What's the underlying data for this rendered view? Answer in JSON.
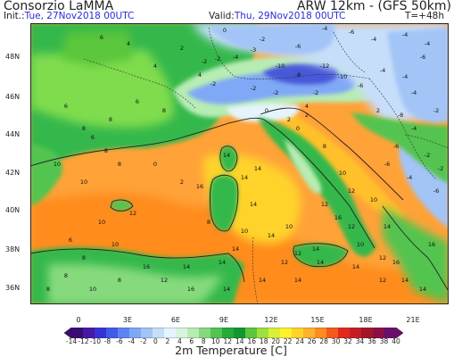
{
  "header": {
    "source": "Consorzio LaMMA",
    "model": "ARW 12km - (GFS 50km)",
    "init_label": "Init.:",
    "init_value": "Tue, 27Nov2018 00UTC",
    "valid_label": "Valid:",
    "valid_value": "Thu, 29Nov2018 00UTC",
    "step": "T=+48h"
  },
  "map": {
    "latitudes": [
      "48N",
      "46N",
      "44N",
      "42N",
      "40N",
      "38N",
      "36N"
    ],
    "longitudes": [
      "0",
      "3E",
      "6E",
      "9E",
      "12E",
      "15E",
      "18E",
      "21E"
    ],
    "colors": {
      "sea_warm": "#ffa238",
      "sea_orange": "#ff8c1e",
      "land_green": "#36b84c",
      "land_light": "#7fdc4e",
      "cold_blue": "#4658d8",
      "frame": "#222222",
      "highlight_text": "#2b2bd6"
    }
  },
  "colorbar": {
    "labels": [
      "-14",
      "-12",
      "-10",
      "-8",
      "-6",
      "-4",
      "-2",
      "0",
      "2",
      "4",
      "6",
      "8",
      "10",
      "12",
      "14",
      "16",
      "18",
      "20",
      "22",
      "24",
      "26",
      "28",
      "30",
      "32",
      "34",
      "36",
      "38",
      "40"
    ],
    "colors": [
      "#3a0c72",
      "#4518a8",
      "#3632d6",
      "#3f5be8",
      "#5b84f2",
      "#7fa8f6",
      "#a3c4f7",
      "#c7defa",
      "#e5f4fd",
      "#d8f4de",
      "#b7ecb3",
      "#86da7d",
      "#52c450",
      "#24ab38",
      "#11972f",
      "#5ac63b",
      "#9ee03f",
      "#dbef36",
      "#fff22a",
      "#ffd32a",
      "#ffb22c",
      "#ff8c1e",
      "#f45a1a",
      "#e02a1c",
      "#c41e22",
      "#a31628",
      "#8c0e45",
      "#6a0d6b"
    ]
  },
  "footer": {
    "title": "2m Temperature [C]"
  },
  "labels": [
    {
      "v": "0",
      "c": "k"
    },
    {
      "v": "-2",
      "c": "k"
    },
    {
      "v": "-4",
      "c": "k"
    },
    {
      "v": "-6",
      "c": "k"
    },
    {
      "v": "-4",
      "c": "k"
    },
    {
      "v": "-4",
      "c": "k"
    },
    {
      "v": "-4",
      "c": "k"
    },
    {
      "v": "-6",
      "c": "k"
    },
    {
      "v": "-3",
      "c": "k"
    },
    {
      "v": "-4",
      "c": "k"
    },
    {
      "v": "-2",
      "c": "k"
    },
    {
      "v": "-2",
      "c": "k"
    },
    {
      "v": "2",
      "c": "k"
    },
    {
      "v": "4",
      "c": "k"
    },
    {
      "v": "6",
      "c": "k"
    },
    {
      "v": "4",
      "c": "k"
    },
    {
      "v": "4",
      "c": "k"
    },
    {
      "v": "-2",
      "c": "k"
    },
    {
      "v": "-10",
      "c": "k"
    },
    {
      "v": "-8",
      "c": "k"
    },
    {
      "v": "-12",
      "c": "k"
    },
    {
      "v": "-10",
      "c": "k"
    },
    {
      "v": "-6",
      "c": "k"
    },
    {
      "v": "-4",
      "c": "k"
    },
    {
      "v": "-4",
      "c": "k"
    },
    {
      "v": "-2",
      "c": "k"
    },
    {
      "v": "-2",
      "c": "k"
    },
    {
      "v": "0",
      "c": "k"
    },
    {
      "v": "2",
      "c": "k"
    },
    {
      "v": "2",
      "c": "k"
    },
    {
      "v": "0",
      "c": "k"
    },
    {
      "v": "6",
      "c": "k"
    },
    {
      "v": "8",
      "c": "k"
    },
    {
      "v": "8",
      "c": "k"
    },
    {
      "v": "8",
      "c": "k"
    },
    {
      "v": "6",
      "c": "k"
    },
    {
      "v": "6",
      "c": "k"
    },
    {
      "v": "10",
      "c": "k"
    },
    {
      "v": "10",
      "c": "k"
    },
    {
      "v": "-6",
      "c": "k"
    },
    {
      "v": "-4",
      "c": "k"
    },
    {
      "v": "-2",
      "c": "k"
    },
    {
      "v": "2",
      "c": "k"
    },
    {
      "v": "8",
      "c": "k"
    },
    {
      "v": "10",
      "c": "k"
    },
    {
      "v": "12",
      "c": "k"
    },
    {
      "v": "14",
      "c": "k"
    },
    {
      "v": "14",
      "c": "k"
    },
    {
      "v": "14",
      "c": "k"
    },
    {
      "v": "16",
      "c": "k"
    },
    {
      "v": "14",
      "c": "k"
    },
    {
      "v": "12",
      "c": "k"
    },
    {
      "v": "12",
      "c": "k"
    },
    {
      "v": "10",
      "c": "k"
    },
    {
      "v": "12",
      "c": "k"
    },
    {
      "v": "14",
      "c": "k"
    },
    {
      "v": "14",
      "c": "k"
    },
    {
      "v": "12",
      "c": "k"
    },
    {
      "v": "10",
      "c": "k"
    },
    {
      "v": "14",
      "c": "k"
    },
    {
      "v": "14",
      "c": "k"
    },
    {
      "v": "14",
      "c": "k"
    },
    {
      "v": "12",
      "c": "k"
    },
    {
      "v": "14",
      "c": "k"
    },
    {
      "v": "16",
      "c": "k"
    },
    {
      "v": "14",
      "c": "k"
    },
    {
      "v": "14",
      "c": "k"
    },
    {
      "v": "16",
      "c": "k"
    },
    {
      "v": "16",
      "c": "k"
    },
    {
      "v": "14",
      "c": "k"
    },
    {
      "v": "12",
      "c": "k"
    },
    {
      "v": "10",
      "c": "k"
    },
    {
      "v": "14",
      "c": "k"
    },
    {
      "v": "14",
      "c": "k"
    },
    {
      "v": "14",
      "c": "k"
    },
    {
      "v": "16",
      "c": "k"
    },
    {
      "v": "16",
      "c": "k"
    },
    {
      "v": "8",
      "c": "k"
    },
    {
      "v": "10",
      "c": "k"
    },
    {
      "v": "8",
      "c": "k"
    },
    {
      "v": "10",
      "c": "k"
    },
    {
      "v": "8",
      "c": "k"
    },
    {
      "v": "8",
      "c": "k"
    },
    {
      "v": "6",
      "c": "k"
    },
    {
      "v": "10",
      "c": "k"
    },
    {
      "v": "12",
      "c": "k"
    },
    {
      "v": "8",
      "c": "k"
    },
    {
      "v": "8",
      "c": "k"
    },
    {
      "v": "-6",
      "c": "k"
    },
    {
      "v": "-4",
      "c": "k"
    },
    {
      "v": "-2",
      "c": "k"
    },
    {
      "v": "-2",
      "c": "k"
    },
    {
      "v": "-6",
      "c": "k"
    },
    {
      "v": "-4",
      "c": "k"
    },
    {
      "v": "-6",
      "c": "k"
    },
    {
      "v": "-8",
      "c": "k"
    },
    {
      "v": "-2",
      "c": "k"
    },
    {
      "v": "4",
      "c": "k"
    },
    {
      "v": "0",
      "c": "k"
    },
    {
      "v": "2",
      "c": "k"
    },
    {
      "v": "8",
      "c": "k"
    },
    {
      "v": "10",
      "c": "k"
    },
    {
      "v": "12",
      "c": "k"
    },
    {
      "v": "14",
      "c": "k"
    }
  ]
}
